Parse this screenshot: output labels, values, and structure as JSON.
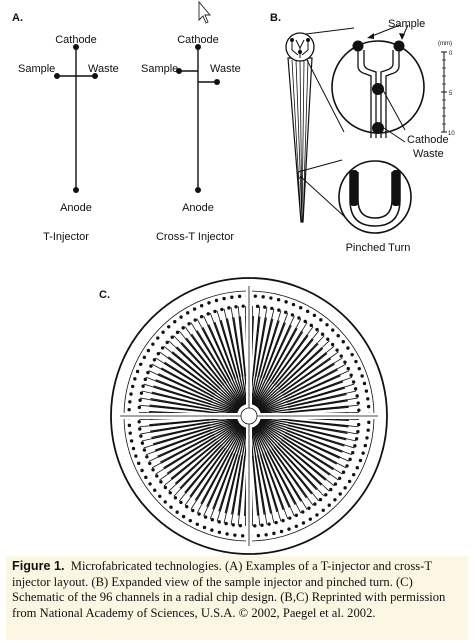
{
  "panels": {
    "a": {
      "label": "A.",
      "t_injector": {
        "cathode": "Cathode",
        "sample": "Sample",
        "waste": "Waste",
        "anode": "Anode",
        "name": "T-Injector"
      },
      "cross_t_injector": {
        "cathode": "Cathode",
        "sample": "Sample",
        "waste": "Waste",
        "anode": "Anode",
        "name": "Cross-T Injector"
      }
    },
    "b": {
      "label": "B.",
      "sample": "Sample",
      "cathode": "Cathode",
      "waste": "Waste",
      "scale_unit": "(mm)",
      "scale_ticks": [
        "0",
        "5",
        "10"
      ],
      "pinched_turn": "Pinched Turn"
    },
    "c": {
      "label": "C."
    }
  },
  "caption": {
    "figure_label": "Figure 1.",
    "text": "Microfabricated technologies. (A) Examples of a T-injector and cross-T injector layout. (B) Expanded view of the sample injector and pinched turn. (C) Schematic of the 96 channels in a radial chip design. (B,C) Reprinted with permission from National Academy of Sciences, U.S.A. © 2002, Paegel et al. 2002."
  },
  "colors": {
    "caption_background": "#fbf7e2",
    "ink": "#111111"
  }
}
